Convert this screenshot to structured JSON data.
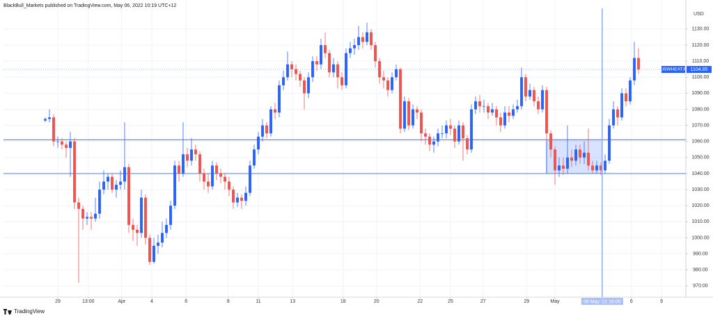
{
  "header": "BlackBull_Markets published on TradingView.com, May 06, 2022 10:19 UTC+12",
  "footer": "TradingView",
  "chart_data": {
    "type": "candlestick",
    "symbol": "USWHEAT.F",
    "currency": "USD",
    "up_color": "#2962ff",
    "down_color": "#ef5350",
    "grid": true,
    "x": [
      0,
      1,
      2,
      3,
      4,
      5,
      6,
      7,
      8,
      9,
      10,
      11,
      12,
      13,
      14,
      15,
      16,
      17,
      18,
      19,
      20,
      21,
      22,
      23,
      24,
      25,
      26,
      27,
      28,
      29,
      30,
      31,
      32,
      33,
      34,
      35,
      36,
      37,
      38,
      39,
      40,
      41,
      42,
      43,
      44,
      45,
      46,
      47,
      48,
      49,
      50,
      51,
      52,
      53,
      54,
      55,
      56,
      57,
      58,
      59,
      60,
      61,
      62,
      63,
      64,
      65,
      66,
      67,
      68,
      69,
      70,
      71,
      72,
      73,
      74,
      75,
      76,
      77,
      78,
      79,
      80,
      81,
      82,
      83,
      84,
      85,
      86,
      87,
      88,
      89,
      90,
      91,
      92,
      93,
      94,
      95,
      96,
      97,
      98,
      99,
      100,
      101,
      102,
      103,
      104,
      105,
      106,
      107,
      108,
      109,
      110,
      111,
      112,
      113,
      114,
      115,
      116,
      117,
      118,
      119,
      120,
      121,
      122,
      123,
      124,
      125,
      126,
      127,
      128,
      129,
      130,
      131,
      132,
      133,
      134,
      135,
      136,
      137,
      138,
      139,
      140,
      141,
      142
    ],
    "open": [
      1073,
      1074,
      1075,
      1060,
      1060,
      1058,
      1056,
      1060,
      1022,
      1018,
      1012,
      1013,
      1012,
      1015,
      1030,
      1035,
      1038,
      1030,
      1033,
      1035,
      1044,
      1008,
      1005,
      1003,
      1025,
      1000,
      985,
      995,
      997,
      1003,
      1008,
      1020,
      1045,
      1040,
      1052,
      1048,
      1055,
      1052,
      1040,
      1035,
      1032,
      1045,
      1040,
      1038,
      1035,
      1030,
      1022,
      1025,
      1023,
      1028,
      1045,
      1055,
      1063,
      1070,
      1065,
      1080,
      1078,
      1095,
      1100,
      1108,
      1105,
      1102,
      1098,
      1090,
      1100,
      1110,
      1108,
      1120,
      1115,
      1103,
      1108,
      1100,
      1095,
      1115,
      1118,
      1120,
      1125,
      1122,
      1128,
      1120,
      1110,
      1100,
      1098,
      1092,
      1100,
      1105,
      1068,
      1085,
      1070,
      1080,
      1078,
      1065,
      1063,
      1058,
      1060,
      1065,
      1065,
      1070,
      1068,
      1060,
      1070,
      1062,
      1055,
      1080,
      1085,
      1082,
      1082,
      1078,
      1080,
      1075,
      1070,
      1078,
      1076,
      1080,
      1082,
      1100,
      1088,
      1092,
      1085,
      1080,
      1092,
      1065,
      1055,
      1042,
      1045,
      1043,
      1050,
      1048,
      1055,
      1050,
      1053,
      1045,
      1042,
      1045,
      1042,
      1048,
      1070,
      1080,
      1075,
      1090,
      1085,
      1098,
      1112
    ],
    "high": [
      1075,
      1080,
      1077,
      1063,
      1062,
      1060,
      1066,
      1062,
      1025,
      1020,
      1016,
      1016,
      1025,
      1035,
      1042,
      1040,
      1040,
      1036,
      1042,
      1072,
      1046,
      1012,
      1008,
      1030,
      1027,
      1002,
      1000,
      1002,
      1010,
      1012,
      1023,
      1048,
      1048,
      1072,
      1056,
      1062,
      1058,
      1054,
      1043,
      1040,
      1048,
      1047,
      1043,
      1040,
      1038,
      1032,
      1028,
      1027,
      1032,
      1048,
      1058,
      1066,
      1074,
      1072,
      1082,
      1084,
      1098,
      1104,
      1116,
      1110,
      1108,
      1104,
      1100,
      1103,
      1113,
      1113,
      1124,
      1128,
      1117,
      1112,
      1110,
      1103,
      1118,
      1122,
      1124,
      1132,
      1128,
      1134,
      1130,
      1122,
      1112,
      1104,
      1100,
      1103,
      1108,
      1106,
      1088,
      1087,
      1083,
      1082,
      1080,
      1068,
      1065,
      1063,
      1068,
      1070,
      1073,
      1074,
      1070,
      1073,
      1072,
      1064,
      1083,
      1088,
      1089,
      1086,
      1084,
      1084,
      1082,
      1078,
      1082,
      1082,
      1083,
      1086,
      1106,
      1102,
      1096,
      1094,
      1088,
      1095,
      1094,
      1067,
      1057,
      1050,
      1050,
      1070,
      1055,
      1058,
      1058,
      1060,
      1068,
      1048,
      1048,
      1047,
      1052,
      1074,
      1085,
      1082,
      1093,
      1093,
      1100,
      1122,
      1118
    ],
    "low": [
      1072,
      1072,
      1057,
      1056,
      1055,
      1050,
      1038,
      1018,
      972,
      1005,
      1008,
      1005,
      1010,
      1012,
      1027,
      1030,
      1028,
      1025,
      1030,
      1030,
      1003,
      998,
      995,
      1000,
      996,
      983,
      984,
      990,
      994,
      1000,
      1005,
      1018,
      1035,
      1038,
      1044,
      1045,
      1048,
      1035,
      1030,
      1028,
      1030,
      1036,
      1034,
      1030,
      1026,
      1018,
      1019,
      1018,
      1020,
      1026,
      1043,
      1052,
      1060,
      1062,
      1063,
      1074,
      1075,
      1092,
      1098,
      1100,
      1098,
      1094,
      1080,
      1087,
      1097,
      1104,
      1105,
      1112,
      1100,
      1100,
      1093,
      1092,
      1093,
      1112,
      1114,
      1117,
      1118,
      1120,
      1117,
      1106,
      1096,
      1093,
      1088,
      1090,
      1098,
      1065,
      1066,
      1067,
      1068,
      1074,
      1060,
      1058,
      1054,
      1053,
      1057,
      1062,
      1062,
      1064,
      1056,
      1058,
      1048,
      1052,
      1053,
      1077,
      1078,
      1078,
      1074,
      1076,
      1070,
      1066,
      1068,
      1072,
      1074,
      1078,
      1080,
      1085,
      1086,
      1082,
      1077,
      1078,
      1060,
      1050,
      1033,
      1038,
      1039,
      1040,
      1044,
      1045,
      1046,
      1046,
      1042,
      1040,
      1040,
      1039,
      1040,
      1046,
      1068,
      1070,
      1073,
      1082,
      1083,
      1095,
      1102
    ],
    "close": [
      1074,
      1075,
      1060,
      1060,
      1058,
      1056,
      1060,
      1022,
      1018,
      1012,
      1013,
      1012,
      1015,
      1030,
      1035,
      1038,
      1030,
      1033,
      1035,
      1044,
      1008,
      1005,
      1003,
      1025,
      1000,
      985,
      995,
      997,
      1003,
      1008,
      1020,
      1045,
      1040,
      1052,
      1048,
      1055,
      1052,
      1040,
      1035,
      1032,
      1045,
      1040,
      1038,
      1035,
      1030,
      1022,
      1025,
      1023,
      1028,
      1045,
      1055,
      1063,
      1070,
      1065,
      1080,
      1078,
      1095,
      1100,
      1108,
      1105,
      1102,
      1098,
      1090,
      1100,
      1110,
      1108,
      1120,
      1115,
      1103,
      1108,
      1100,
      1095,
      1115,
      1118,
      1120,
      1125,
      1122,
      1128,
      1120,
      1110,
      1100,
      1098,
      1092,
      1100,
      1105,
      1068,
      1085,
      1070,
      1080,
      1078,
      1065,
      1063,
      1058,
      1060,
      1065,
      1065,
      1070,
      1068,
      1060,
      1070,
      1062,
      1055,
      1080,
      1085,
      1082,
      1082,
      1078,
      1080,
      1075,
      1070,
      1078,
      1076,
      1080,
      1082,
      1100,
      1088,
      1092,
      1085,
      1080,
      1092,
      1065,
      1055,
      1042,
      1045,
      1043,
      1050,
      1048,
      1055,
      1050,
      1053,
      1045,
      1042,
      1045,
      1042,
      1048,
      1070,
      1080,
      1075,
      1090,
      1085,
      1098,
      1112,
      1104.85
    ],
    "xlim": [
      -10,
      153.33
    ],
    "xticks": [
      {
        "value": 3,
        "label": "29"
      },
      {
        "value": 10.3,
        "label": "13:00"
      },
      {
        "value": 18.3,
        "label": "Apr"
      },
      {
        "value": 25.5,
        "label": "4"
      },
      {
        "value": 33.7,
        "label": "6"
      },
      {
        "value": 43.8,
        "label": "8"
      },
      {
        "value": 51,
        "label": "11"
      },
      {
        "value": 59.2,
        "label": "13"
      },
      {
        "value": 71.3,
        "label": "18"
      },
      {
        "value": 79.3,
        "label": "20"
      },
      {
        "value": 89.7,
        "label": "22"
      },
      {
        "value": 97,
        "label": "25"
      },
      {
        "value": 104.8,
        "label": "27"
      },
      {
        "value": 115.2,
        "label": "29"
      },
      {
        "value": 122,
        "label": "May"
      },
      {
        "value": 140.3,
        "label": "6"
      },
      {
        "value": 147.5,
        "label": "9"
      }
    ],
    "ylim": [
      963,
      1148.1
    ],
    "yticks": [
      {
        "value": 970,
        "label": "970.00"
      },
      {
        "value": 980,
        "label": "980.00"
      },
      {
        "value": 990,
        "label": "990.00"
      },
      {
        "value": 1000,
        "label": "1000.00"
      },
      {
        "value": 1010,
        "label": "1010.00"
      },
      {
        "value": 1020,
        "label": "1020.00"
      },
      {
        "value": 1030,
        "label": "1030.00"
      },
      {
        "value": 1040,
        "label": "1040.00"
      },
      {
        "value": 1050,
        "label": "1050.00"
      },
      {
        "value": 1060,
        "label": "1060.00"
      },
      {
        "value": 1070,
        "label": "1070.00"
      },
      {
        "value": 1080,
        "label": "1080.00"
      },
      {
        "value": 1090,
        "label": "1090.00"
      },
      {
        "value": 1100,
        "label": "1100.00"
      },
      {
        "value": 1110,
        "label": "1110.00"
      },
      {
        "value": 1120,
        "label": "1120.00"
      },
      {
        "value": 1130,
        "label": "1130.00"
      }
    ],
    "hlines": [
      1061,
      1040
    ],
    "box": {
      "x": [
        120,
        133.3
      ],
      "y": [
        1040,
        1061
      ]
    },
    "crosshair": {
      "x": 133.3,
      "label": "06 May '22  16:00"
    }
  }
}
